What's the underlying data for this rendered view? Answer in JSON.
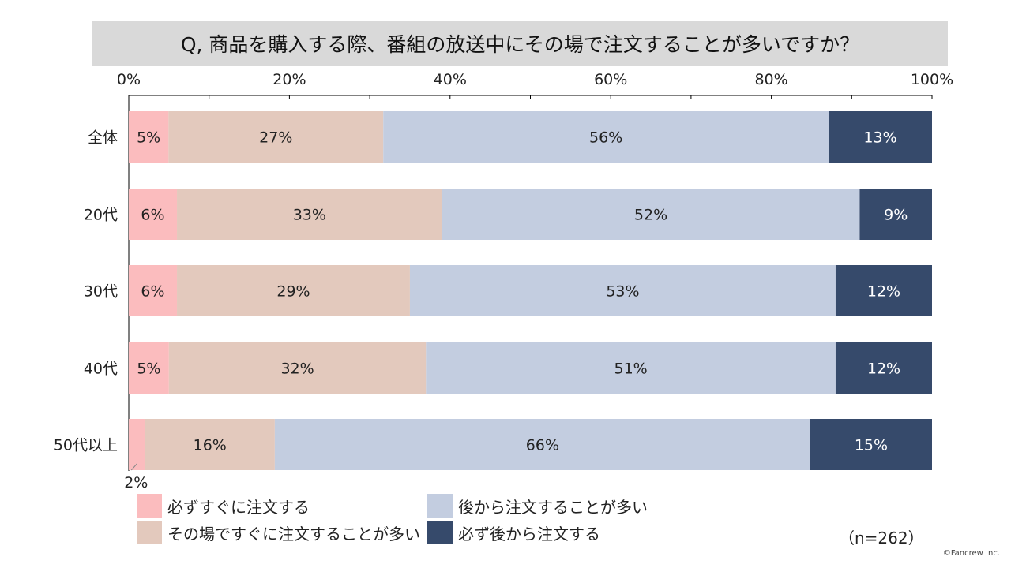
{
  "title": "Q, 商品を購入する際、番組の放送中にその場で注文することが多いですか？",
  "sample_note": "（n=262）",
  "copyright": "©Fancrew Inc.",
  "colors": {
    "title_bg": "#d9d9d9",
    "series": [
      "#fbbcbe",
      "#e3c9bd",
      "#c3cde0",
      "#364a6b"
    ],
    "label_dark": "#222222",
    "label_light": "#ffffff"
  },
  "chart_data": {
    "type": "bar",
    "orientation": "horizontal",
    "stacked": true,
    "percent_scale": true,
    "xlim": [
      0,
      100
    ],
    "xticks": [
      "0%",
      "20%",
      "40%",
      "60%",
      "80%",
      "100%"
    ],
    "categories": [
      "全体",
      "20代",
      "30代",
      "40代",
      "50代以上"
    ],
    "series": [
      {
        "name": "必ずすぐに注文する",
        "values": [
          5,
          6,
          6,
          5,
          2
        ],
        "labels": [
          "5%",
          "6%",
          "6%",
          "5%",
          "2%"
        ]
      },
      {
        "name": "その場ですぐに注文することが多い",
        "values": [
          27,
          33,
          29,
          32,
          16
        ],
        "labels": [
          "27%",
          "33%",
          "29%",
          "32%",
          "16%"
        ]
      },
      {
        "name": "後から注文することが多い",
        "values": [
          56,
          52,
          53,
          51,
          66
        ],
        "labels": [
          "56%",
          "52%",
          "53%",
          "51%",
          "66%"
        ]
      },
      {
        "name": "必ず後から注文する",
        "values": [
          13,
          9,
          12,
          12,
          15
        ],
        "labels": [
          "13%",
          "9%",
          "12%",
          "12%",
          "15%"
        ]
      }
    ],
    "legend_position": "bottom",
    "grid": false
  }
}
